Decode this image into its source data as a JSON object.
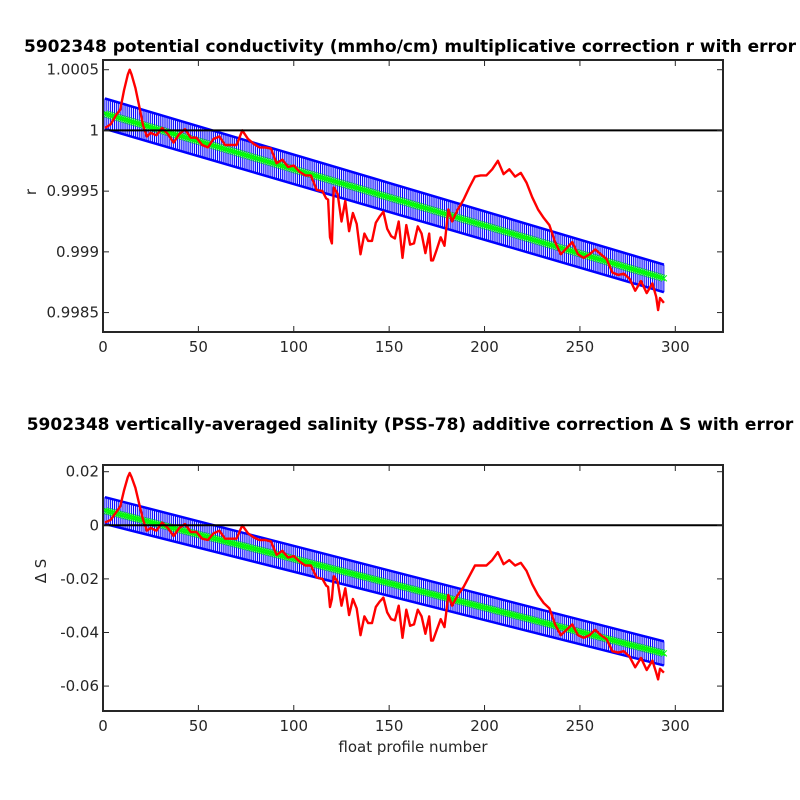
{
  "chart_data": [
    {
      "type": "line",
      "title": "5902348 potential conductivity (mmho/cm) multiplicative correction r with error",
      "xlabel": "",
      "ylabel": "r",
      "xlim": [
        0,
        325
      ],
      "ylim": [
        0.99834,
        1.00058
      ],
      "xticks": [
        0,
        50,
        100,
        150,
        200,
        250,
        300
      ],
      "xtick_labels": [
        "0",
        "50",
        "100",
        "150",
        "200",
        "250",
        "300"
      ],
      "yticks": [
        0.9985,
        0.999,
        0.9995,
        1,
        1.0005
      ],
      "ytick_labels": [
        "0.9985",
        "0.999",
        "0.9995",
        "1",
        "1.0005"
      ],
      "reference_line": 1,
      "series": [
        {
          "role": "error_upper",
          "color": "#0000ff",
          "x": [
            1,
            294
          ],
          "y": [
            1.000263,
            0.998895
          ]
        },
        {
          "role": "error_lower",
          "color": "#0000ff",
          "x": [
            1,
            294
          ],
          "y": [
            1.000013,
            0.998668
          ]
        },
        {
          "role": "fit",
          "color": "#00ff00",
          "x": [
            1,
            294
          ],
          "y": [
            1.000138,
            0.998782
          ]
        },
        {
          "role": "raw",
          "color": "#ff0000",
          "x": [
            1,
            4,
            7,
            9,
            11,
            13,
            14,
            15,
            17,
            19,
            21,
            23,
            25,
            28,
            31,
            34,
            37,
            40,
            43,
            46,
            49,
            52,
            55,
            58,
            61,
            64,
            67,
            70,
            73,
            76,
            79,
            82,
            85,
            88,
            91,
            94,
            97,
            100,
            103,
            106,
            109,
            112,
            115,
            117,
            118,
            119,
            120,
            121,
            123,
            125,
            127,
            129,
            131,
            133,
            135,
            137,
            139,
            141,
            143,
            145,
            147,
            149,
            151,
            153,
            155,
            157,
            159,
            161,
            163,
            165,
            167,
            169,
            171,
            172,
            173,
            175,
            177,
            179,
            181,
            183,
            186,
            189,
            192,
            195,
            198,
            201,
            204,
            207,
            210,
            213,
            216,
            219,
            222,
            225,
            228,
            231,
            234,
            237,
            240,
            243,
            246,
            249,
            252,
            255,
            258,
            261,
            264,
            267,
            270,
            273,
            276,
            279,
            282,
            285,
            288,
            290,
            291,
            292,
            294
          ],
          "y": [
            1.00002,
            1.00005,
            1.00013,
            1.00017,
            1.00033,
            1.00046,
            1.0005,
            1.00046,
            1.00035,
            1.0002,
            1.00004,
            0.99995,
            0.99998,
            0.99996,
            1.00002,
            0.99997,
            0.9999,
            0.99997,
            1.00001,
            0.99994,
            0.99994,
            0.99988,
            0.99986,
            0.99993,
            0.99995,
            0.99988,
            0.99988,
            0.99988,
            1,
            0.99993,
            0.99989,
            0.99986,
            0.99986,
            0.99985,
            0.99973,
            0.99976,
            0.9997,
            0.99971,
            0.99966,
            0.99963,
            0.99963,
            0.99951,
            0.9995,
            0.99944,
            0.99943,
            0.99912,
            0.99907,
            0.99953,
            0.99948,
            0.99925,
            0.99942,
            0.99917,
            0.99932,
            0.99923,
            0.99898,
            0.99915,
            0.99909,
            0.99909,
            0.99924,
            0.99929,
            0.99933,
            0.99919,
            0.99913,
            0.99911,
            0.99925,
            0.99895,
            0.99922,
            0.99906,
            0.99907,
            0.99921,
            0.99915,
            0.99899,
            0.99915,
            0.99893,
            0.99893,
            0.99902,
            0.99912,
            0.99905,
            0.99935,
            0.99925,
            0.99935,
            0.99943,
            0.99953,
            0.99962,
            0.99963,
            0.99963,
            0.99968,
            0.99975,
            0.99964,
            0.99968,
            0.99962,
            0.99965,
            0.99957,
            0.99945,
            0.99935,
            0.99928,
            0.99922,
            0.99908,
            0.99898,
            0.99903,
            0.99908,
            0.99898,
            0.99895,
            0.99898,
            0.99902,
            0.99898,
            0.99894,
            0.99883,
            0.99881,
            0.99882,
            0.99878,
            0.99868,
            0.99876,
            0.99866,
            0.99874,
            0.99863,
            0.99852,
            0.99862,
            0.99858
          ]
        }
      ]
    },
    {
      "type": "line",
      "title": "5902348 vertically-averaged salinity (PSS-78) additive correction Δ S with error",
      "xlabel": "float profile number",
      "ylabel": "Δ S",
      "xlim": [
        0,
        325
      ],
      "ylim": [
        -0.0693,
        0.0225
      ],
      "xticks": [
        0,
        50,
        100,
        150,
        200,
        250,
        300
      ],
      "xtick_labels": [
        "0",
        "50",
        "100",
        "150",
        "200",
        "250",
        "300"
      ],
      "yticks": [
        -0.06,
        -0.04,
        -0.02,
        0,
        0.02
      ],
      "ytick_labels": [
        "-0.06",
        "-0.04",
        "-0.02",
        "0",
        "0.02"
      ],
      "reference_line": 0,
      "series": [
        {
          "role": "error_upper",
          "color": "#0000ff",
          "x": [
            1,
            294
          ],
          "y": [
            0.0105,
            -0.0433
          ]
        },
        {
          "role": "error_lower",
          "color": "#0000ff",
          "x": [
            1,
            294
          ],
          "y": [
            0.0005,
            -0.0523
          ]
        },
        {
          "role": "fit",
          "color": "#00ff00",
          "x": [
            1,
            294
          ],
          "y": [
            0.0055,
            -0.0478
          ]
        },
        {
          "role": "raw",
          "color": "#ff0000",
          "x": [
            1,
            4,
            7,
            9,
            11,
            13,
            14,
            15,
            17,
            19,
            21,
            23,
            25,
            28,
            31,
            34,
            37,
            40,
            43,
            46,
            49,
            52,
            55,
            58,
            61,
            64,
            67,
            70,
            73,
            76,
            79,
            82,
            85,
            88,
            91,
            94,
            97,
            100,
            103,
            106,
            109,
            112,
            115,
            117,
            118,
            119,
            120,
            121,
            123,
            125,
            127,
            129,
            131,
            133,
            135,
            137,
            139,
            141,
            143,
            145,
            147,
            149,
            151,
            153,
            155,
            157,
            159,
            161,
            163,
            165,
            167,
            169,
            171,
            172,
            173,
            175,
            177,
            179,
            181,
            183,
            186,
            189,
            192,
            195,
            198,
            201,
            204,
            207,
            210,
            213,
            216,
            219,
            222,
            225,
            228,
            231,
            234,
            237,
            240,
            243,
            246,
            249,
            252,
            255,
            258,
            261,
            264,
            267,
            270,
            273,
            276,
            279,
            282,
            285,
            288,
            290,
            291,
            292,
            294
          ],
          "y": [
            0.001,
            0.002,
            0.005,
            0.007,
            0.013,
            0.018,
            0.0195,
            0.018,
            0.014,
            0.008,
            0.002,
            -0.002,
            -0.001,
            -0.002,
            0.001,
            -0.001,
            -0.004,
            -0.001,
            0.0005,
            -0.0025,
            -0.0025,
            -0.005,
            -0.0055,
            -0.003,
            -0.002,
            -0.005,
            -0.005,
            -0.005,
            0,
            -0.003,
            -0.0045,
            -0.0055,
            -0.0055,
            -0.006,
            -0.011,
            -0.0095,
            -0.012,
            -0.0115,
            -0.0135,
            -0.015,
            -0.015,
            -0.0195,
            -0.02,
            -0.0225,
            -0.023,
            -0.0305,
            -0.0275,
            -0.019,
            -0.021,
            -0.03,
            -0.0235,
            -0.0335,
            -0.0275,
            -0.031,
            -0.041,
            -0.034,
            -0.0365,
            -0.0365,
            -0.0305,
            -0.0285,
            -0.027,
            -0.0325,
            -0.035,
            -0.0355,
            -0.03,
            -0.042,
            -0.0315,
            -0.0375,
            -0.037,
            -0.0315,
            -0.034,
            -0.0405,
            -0.034,
            -0.043,
            -0.043,
            -0.039,
            -0.035,
            -0.038,
            -0.026,
            -0.03,
            -0.026,
            -0.023,
            -0.019,
            -0.015,
            -0.015,
            -0.015,
            -0.013,
            -0.01,
            -0.0145,
            -0.013,
            -0.015,
            -0.014,
            -0.017,
            -0.022,
            -0.026,
            -0.029,
            -0.031,
            -0.037,
            -0.041,
            -0.039,
            -0.037,
            -0.041,
            -0.042,
            -0.041,
            -0.039,
            -0.041,
            -0.0425,
            -0.047,
            -0.0475,
            -0.047,
            -0.049,
            -0.053,
            -0.0495,
            -0.054,
            -0.0505,
            -0.055,
            -0.0575,
            -0.0535,
            -0.055
          ]
        }
      ]
    }
  ]
}
